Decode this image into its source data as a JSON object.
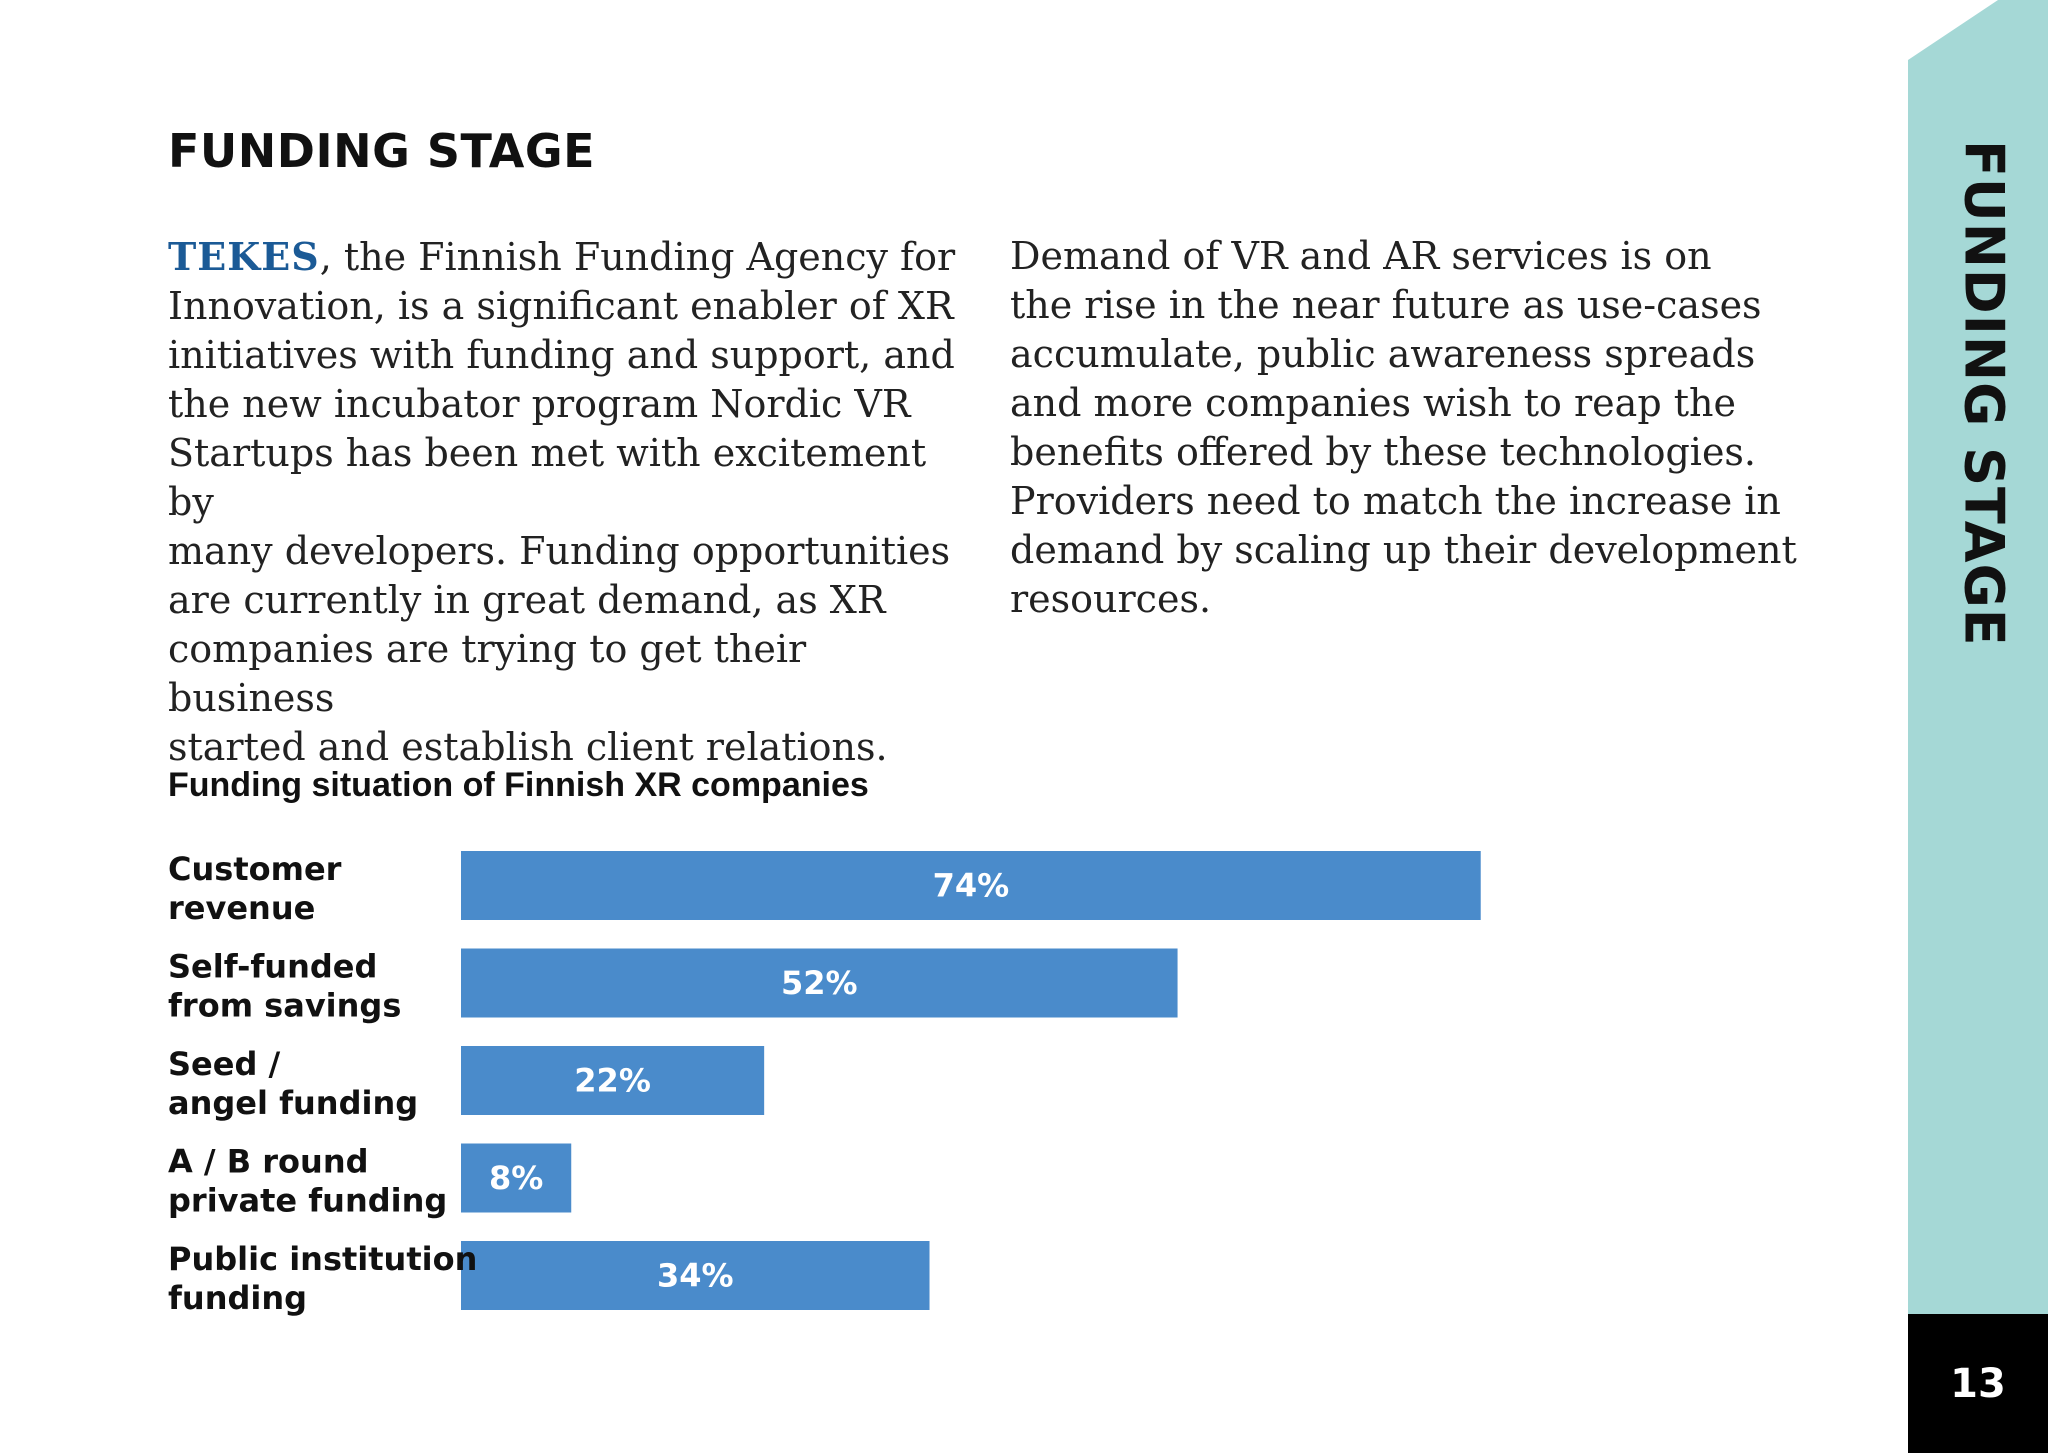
{
  "header": {
    "title": "FUNDING STAGE"
  },
  "body": {
    "left_brand": "TEKES",
    "left_text": ", the Finnish Funding Agency for\nInnovation, is a significant enabler of XR\ninitiatives with funding and support, and\nthe new incubator program Nordic VR\nStartups has been met with excitement by\nmany developers. Funding opportunities\nare currently in great demand, as XR\ncompanies are trying to get their business\nstarted and establish client relations.",
    "right_text": "    Demand of VR and AR services is on\nthe rise in the near future as use-cases\naccumulate, public awareness spreads\nand more companies wish to reap the\nbenefits offered by these technologies.\nProviders need to match the increase in\ndemand by scaling up their development\nresources."
  },
  "sidebar": {
    "title": "FUNDING STAGE",
    "page_number": "13"
  },
  "colors": {
    "bar": "#4a8bcb",
    "sidebar": "#a5d8d6",
    "brand": "#1b5a96"
  },
  "chart_data": {
    "type": "bar",
    "orientation": "horizontal",
    "title": "Funding situation of Finnish XR companies",
    "categories": [
      [
        "Customer",
        "revenue"
      ],
      [
        "Self-funded",
        "from savings"
      ],
      [
        "Seed /",
        "angel funding"
      ],
      [
        "A / B round",
        "private funding"
      ],
      [
        "Public institution",
        "funding"
      ]
    ],
    "values": [
      74,
      52,
      22,
      8,
      34
    ],
    "value_labels": [
      "74%",
      "52%",
      "22%",
      "8%",
      "34%"
    ],
    "xlim": [
      0,
      100
    ],
    "grid": false,
    "legend": "none"
  }
}
